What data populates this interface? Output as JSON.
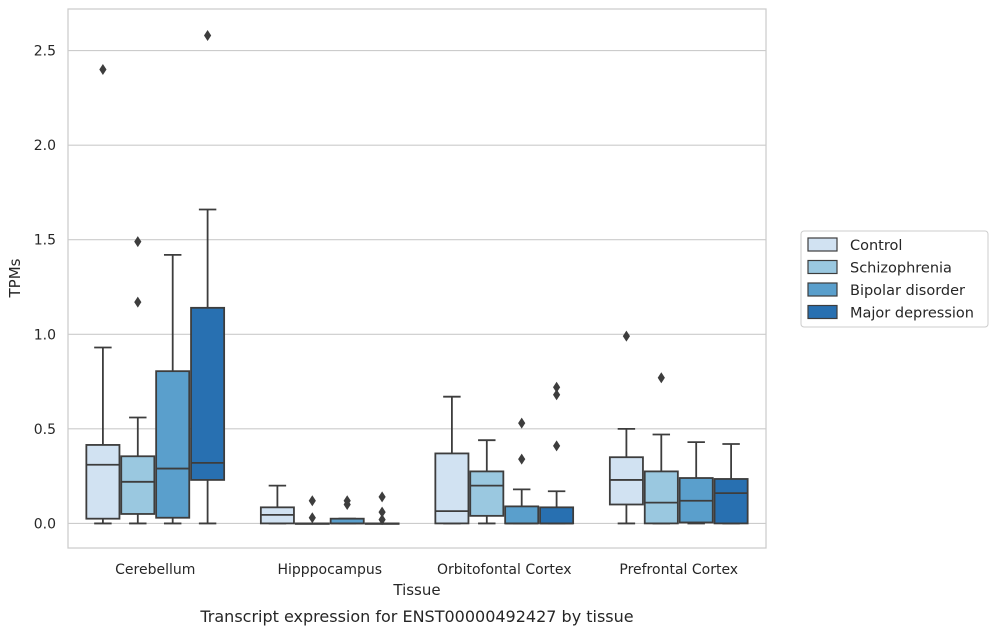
{
  "caption": "Transcript expression for ENST00000492427 by tissue",
  "chart_data": {
    "type": "box",
    "title": "",
    "xlabel": "Tissue",
    "ylabel": "TPMs",
    "ylim": [
      -0.13,
      2.72
    ],
    "yticks": [
      0.0,
      0.5,
      1.0,
      1.5,
      2.0,
      2.5
    ],
    "ytick_labels": [
      "0.0",
      "0.5",
      "1.0",
      "1.5",
      "2.0",
      "2.5"
    ],
    "grid": "horizontal",
    "legend_position": "right",
    "categories": [
      "Cerebellum",
      "Hipppocampus",
      "Orbitofontal Cortex",
      "Prefrontal Cortex"
    ],
    "series": [
      {
        "name": "Control",
        "color": "#d1e2f2",
        "boxes": [
          {
            "min": 0.0,
            "q1": 0.025,
            "median": 0.31,
            "q3": 0.415,
            "max": 0.93,
            "outliers": [
              2.4
            ]
          },
          {
            "min": 0.0,
            "q1": 0.0,
            "median": 0.045,
            "q3": 0.085,
            "max": 0.2,
            "outliers": []
          },
          {
            "min": 0.0,
            "q1": 0.0,
            "median": 0.065,
            "q3": 0.37,
            "max": 0.67,
            "outliers": []
          },
          {
            "min": 0.0,
            "q1": 0.1,
            "median": 0.23,
            "q3": 0.35,
            "max": 0.5,
            "outliers": [
              0.99
            ]
          }
        ]
      },
      {
        "name": "Schizophrenia",
        "color": "#9ac8e0",
        "boxes": [
          {
            "min": 0.0,
            "q1": 0.05,
            "median": 0.22,
            "q3": 0.355,
            "max": 0.56,
            "outliers": [
              1.17,
              1.49
            ]
          },
          {
            "min": 0.0,
            "q1": 0.0,
            "median": 0.0,
            "q3": 0.0,
            "max": 0.0,
            "outliers": [
              0.03,
              0.12
            ]
          },
          {
            "min": 0.0,
            "q1": 0.04,
            "median": 0.2,
            "q3": 0.275,
            "max": 0.44,
            "outliers": []
          },
          {
            "min": 0.0,
            "q1": 0.0,
            "median": 0.11,
            "q3": 0.275,
            "max": 0.47,
            "outliers": [
              0.77
            ]
          }
        ]
      },
      {
        "name": "Bipolar disorder",
        "color": "#5a9fcc",
        "boxes": [
          {
            "min": 0.0,
            "q1": 0.03,
            "median": 0.29,
            "q3": 0.805,
            "max": 1.42,
            "outliers": []
          },
          {
            "min": 0.0,
            "q1": 0.0,
            "median": 0.0,
            "q3": 0.025,
            "max": 0.025,
            "outliers": [
              0.1,
              0.12
            ]
          },
          {
            "min": 0.0,
            "q1": 0.0,
            "median": 0.0,
            "q3": 0.09,
            "max": 0.18,
            "outliers": [
              0.34,
              0.53
            ]
          },
          {
            "min": 0.0,
            "q1": 0.005,
            "median": 0.12,
            "q3": 0.24,
            "max": 0.43,
            "outliers": []
          }
        ]
      },
      {
        "name": "Major depression",
        "color": "#2870b1",
        "boxes": [
          {
            "min": 0.0,
            "q1": 0.23,
            "median": 0.32,
            "q3": 1.14,
            "max": 1.66,
            "outliers": [
              2.58
            ]
          },
          {
            "min": 0.0,
            "q1": 0.0,
            "median": 0.0,
            "q3": 0.0,
            "max": 0.0,
            "outliers": [
              0.02,
              0.06,
              0.14
            ]
          },
          {
            "min": 0.0,
            "q1": 0.0,
            "median": 0.0,
            "q3": 0.085,
            "max": 0.17,
            "outliers": [
              0.41,
              0.68,
              0.72
            ]
          },
          {
            "min": 0.0,
            "q1": 0.0,
            "median": 0.16,
            "q3": 0.235,
            "max": 0.42,
            "outliers": []
          }
        ]
      }
    ]
  }
}
